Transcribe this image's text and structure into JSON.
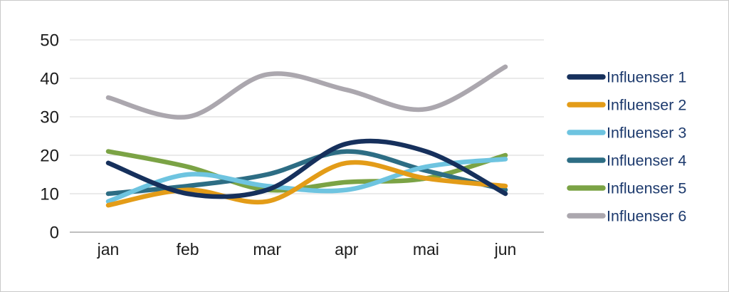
{
  "frame": {
    "background": "#ffffff",
    "border_color": "#c9c9c9"
  },
  "chart_data": {
    "type": "line",
    "title": "",
    "categories": [
      "jan",
      "feb",
      "mar",
      "apr",
      "mai",
      "jun"
    ],
    "series": [
      {
        "name": "Influenser 1",
        "color": "#16305c",
        "values": [
          18,
          10,
          11,
          23,
          21,
          10
        ]
      },
      {
        "name": "Influenser 2",
        "color": "#e39c18",
        "values": [
          7,
          11,
          8,
          18,
          14,
          12
        ]
      },
      {
        "name": "Influenser 3",
        "color": "#6ec4e0",
        "values": [
          8,
          15,
          12,
          11,
          17,
          19
        ]
      },
      {
        "name": "Influenser 4",
        "color": "#2d6d84",
        "values": [
          10,
          12,
          15,
          21,
          16,
          11
        ]
      },
      {
        "name": "Influenser 5",
        "color": "#7ba345",
        "values": [
          21,
          17,
          11,
          13,
          14,
          20
        ]
      },
      {
        "name": "Influenser 6",
        "color": "#aba7ae",
        "values": [
          35,
          30,
          41,
          37,
          32,
          43
        ]
      }
    ],
    "yticks": [
      0,
      10,
      20,
      30,
      40,
      50
    ],
    "ylim": [
      0,
      50
    ],
    "grid": true,
    "legend_position": "right",
    "smooth": true,
    "axis_text_color": "#1c1c1c",
    "legend_text_color": "#1d3a6d",
    "gridline_color": "#e3e3e3",
    "baseline_color": "#bfbfbf"
  }
}
